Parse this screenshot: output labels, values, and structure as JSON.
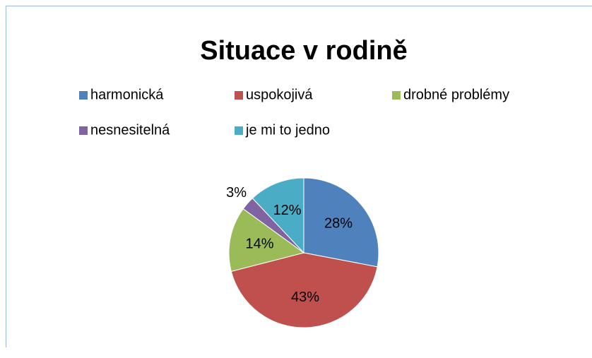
{
  "chart_data": {
    "type": "pie",
    "title": "Situace v rodině",
    "categories": [
      "harmonická",
      "uspokojivá",
      "drobné problémy",
      "nesnesitelná",
      "je mi to jedno"
    ],
    "values": [
      28,
      43,
      14,
      3,
      12
    ],
    "value_labels": [
      "28%",
      "43%",
      "14%",
      "3%",
      "12%"
    ],
    "colors": [
      "#4f81bd",
      "#c0504d",
      "#9bbb59",
      "#8064a2",
      "#4bacc6"
    ],
    "legend": "top"
  }
}
